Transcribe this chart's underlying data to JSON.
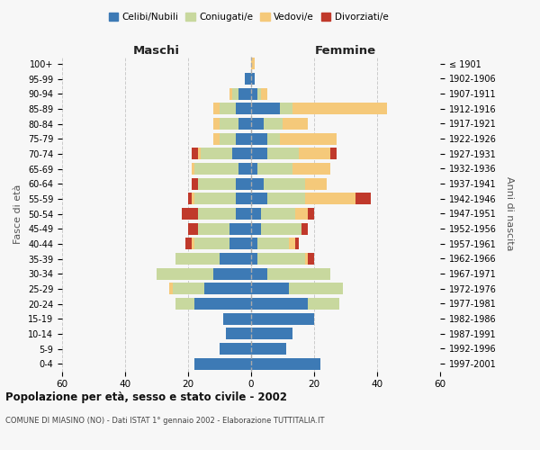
{
  "age_groups": [
    "0-4",
    "5-9",
    "10-14",
    "15-19",
    "20-24",
    "25-29",
    "30-34",
    "35-39",
    "40-44",
    "45-49",
    "50-54",
    "55-59",
    "60-64",
    "65-69",
    "70-74",
    "75-79",
    "80-84",
    "85-89",
    "90-94",
    "95-99",
    "100+"
  ],
  "birth_years": [
    "1997-2001",
    "1992-1996",
    "1987-1991",
    "1982-1986",
    "1977-1981",
    "1972-1976",
    "1967-1971",
    "1962-1966",
    "1957-1961",
    "1952-1956",
    "1947-1951",
    "1942-1946",
    "1937-1941",
    "1932-1936",
    "1927-1931",
    "1922-1926",
    "1917-1921",
    "1912-1916",
    "1907-1911",
    "1902-1906",
    "≤ 1901"
  ],
  "males": {
    "celibi": [
      18,
      10,
      8,
      9,
      18,
      15,
      12,
      10,
      7,
      7,
      5,
      5,
      5,
      4,
      6,
      5,
      4,
      5,
      4,
      2,
      0
    ],
    "coniugati": [
      0,
      0,
      0,
      0,
      6,
      10,
      18,
      14,
      11,
      10,
      12,
      13,
      12,
      14,
      10,
      5,
      6,
      5,
      2,
      0,
      0
    ],
    "vedovi": [
      0,
      0,
      0,
      0,
      0,
      1,
      0,
      0,
      1,
      0,
      0,
      1,
      0,
      1,
      1,
      2,
      2,
      2,
      1,
      0,
      0
    ],
    "divorziati": [
      0,
      0,
      0,
      0,
      0,
      0,
      0,
      0,
      2,
      3,
      5,
      1,
      2,
      0,
      2,
      0,
      0,
      0,
      0,
      0,
      0
    ]
  },
  "females": {
    "nubili": [
      22,
      11,
      13,
      20,
      18,
      12,
      5,
      2,
      2,
      3,
      3,
      5,
      4,
      2,
      5,
      5,
      4,
      9,
      2,
      1,
      0
    ],
    "coniugate": [
      0,
      0,
      0,
      0,
      10,
      17,
      20,
      15,
      10,
      13,
      11,
      12,
      13,
      11,
      10,
      4,
      6,
      4,
      1,
      0,
      0
    ],
    "vedove": [
      0,
      0,
      0,
      0,
      0,
      0,
      0,
      1,
      2,
      0,
      4,
      16,
      7,
      12,
      10,
      18,
      8,
      30,
      2,
      0,
      1
    ],
    "divorziate": [
      0,
      0,
      0,
      0,
      0,
      0,
      0,
      2,
      1,
      2,
      2,
      5,
      0,
      0,
      2,
      0,
      0,
      0,
      0,
      0,
      0
    ]
  },
  "colors": {
    "celibi": "#3d7ab5",
    "coniugati": "#c8d89e",
    "vedovi": "#f5c97a",
    "divorziati": "#c0392b"
  },
  "legend_labels": [
    "Celibi/Nubili",
    "Coniugati/e",
    "Vedovi/e",
    "Divorziati/e"
  ],
  "title": "Popolazione per età, sesso e stato civile - 2002",
  "subtitle": "COMUNE DI MIASINO (NO) - Dati ISTAT 1° gennaio 2002 - Elaborazione TUTTITALIA.IT",
  "ylabel_left": "Fasce di età",
  "ylabel_right": "Anni di nascita",
  "header_left": "Maschi",
  "header_right": "Femmine",
  "xlim": 60,
  "bg_color": "#f7f7f7",
  "grid_color": "#cccccc"
}
